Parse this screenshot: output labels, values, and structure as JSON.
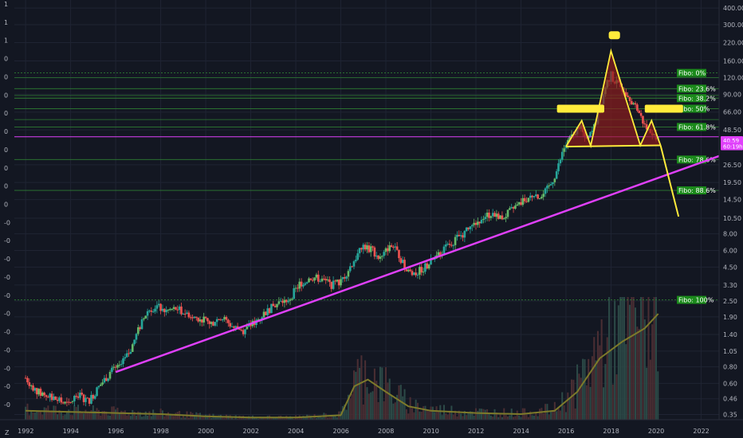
{
  "chart_data": {
    "type": "candlestick",
    "x_axis": {
      "ticks": [
        "1992",
        "1994",
        "1996",
        "1998",
        "2000",
        "2002",
        "2004",
        "2006",
        "2008",
        "2010",
        "2012",
        "2014",
        "2016",
        "2018",
        "2020",
        "2022"
      ],
      "range": [
        1991.5,
        2022.8
      ]
    },
    "y_axis": {
      "scale": "log",
      "ticks": [
        "400.00",
        "300.00",
        "220.00",
        "160.00",
        "120.00",
        "90.00",
        "66.00",
        "48.50",
        "26.50",
        "19.50",
        "14.50",
        "10.50",
        "8.00",
        "6.00",
        "4.50",
        "3.30",
        "2.50",
        "1.90",
        "1.40",
        "1.05",
        "0.80",
        "0.60",
        "0.46",
        "0.35"
      ],
      "range": [
        0.32,
        460
      ]
    },
    "left_axis_labels": [
      "1",
      "1",
      "1",
      "0",
      "0",
      "0",
      "0",
      "0",
      "0",
      "0",
      "0",
      "0",
      "-0",
      "-0",
      "-0",
      "-0",
      "-0",
      "-0",
      "-0",
      "-0",
      "-0",
      "-0",
      "-0"
    ],
    "current_price_tags": [
      {
        "label": "40.59",
        "value": 40.59,
        "color": "#e040fb"
      },
      {
        "label": "60:19h",
        "value": 36.5,
        "color": "#e040fb"
      }
    ],
    "fibonacci_levels": [
      {
        "label": "Fibo:  0%",
        "price": 130
      },
      {
        "label": "Fibo: 23.6%",
        "price": 99
      },
      {
        "label": "Fibo: 38.2%",
        "price": 84
      },
      {
        "label": "Fibo:  50%",
        "price": 70
      },
      {
        "label": "Fibo: 61.8%",
        "price": 51
      },
      {
        "label": "Fibo: 78.6%",
        "price": 29
      },
      {
        "label": "Fibo: 88.6%",
        "price": 17
      },
      {
        "label": "Fibo: 100%",
        "price": 2.55
      }
    ],
    "fib_extra_lines": [
      120,
      88,
      58
    ],
    "horizontal_line": {
      "price": 43,
      "color": "#e040fb"
    },
    "trendline": {
      "color": "#e040fb",
      "points": [
        {
          "x": 1996.0,
          "y": 0.73
        },
        {
          "x": 2022.8,
          "y": 30.8
        }
      ]
    },
    "annotation_head_and_shoulders": {
      "color": "#ffeb3b",
      "fill": "#8b1c1c",
      "neckline": [
        {
          "x": 2016.0,
          "y": 36.3
        },
        {
          "x": 2020.2,
          "y": 37.1
        }
      ],
      "outline": [
        {
          "x": 2016.0,
          "y": 36.3
        },
        {
          "x": 2016.7,
          "y": 57
        },
        {
          "x": 2017.1,
          "y": 36.8
        },
        {
          "x": 2018.0,
          "y": 190
        },
        {
          "x": 2019.3,
          "y": 37.1
        },
        {
          "x": 2019.8,
          "y": 57
        },
        {
          "x": 2020.2,
          "y": 37.1
        }
      ],
      "projection": [
        {
          "x": 2020.2,
          "y": 37.1
        },
        {
          "x": 2021.0,
          "y": 10.8
        }
      ],
      "shoulder_bars": [
        {
          "x0": 2015.6,
          "x1": 2017.7,
          "y": 70
        },
        {
          "x0": 2019.5,
          "x1": 2021.2,
          "y": 70
        }
      ],
      "head_bar": {
        "x0": 2017.9,
        "x1": 2018.4,
        "y": 250
      }
    },
    "price_path": [
      {
        "x": 1992.0,
        "y": 0.66
      },
      {
        "x": 1992.5,
        "y": 0.52
      },
      {
        "x": 1993.0,
        "y": 0.48
      },
      {
        "x": 1993.4,
        "y": 0.45
      },
      {
        "x": 1993.9,
        "y": 0.41
      },
      {
        "x": 1994.3,
        "y": 0.5
      },
      {
        "x": 1994.8,
        "y": 0.44
      },
      {
        "x": 1995.3,
        "y": 0.58
      },
      {
        "x": 1995.8,
        "y": 0.74
      },
      {
        "x": 1996.2,
        "y": 0.8
      },
      {
        "x": 1996.6,
        "y": 1.02
      },
      {
        "x": 1997.0,
        "y": 1.5
      },
      {
        "x": 1997.4,
        "y": 2.1
      },
      {
        "x": 1997.8,
        "y": 2.3
      },
      {
        "x": 1998.2,
        "y": 2.1
      },
      {
        "x": 1998.7,
        "y": 2.2
      },
      {
        "x": 1999.2,
        "y": 2.0
      },
      {
        "x": 1999.7,
        "y": 1.85
      },
      {
        "x": 2000.2,
        "y": 1.7
      },
      {
        "x": 2000.7,
        "y": 1.9
      },
      {
        "x": 2001.2,
        "y": 1.6
      },
      {
        "x": 2001.7,
        "y": 1.5
      },
      {
        "x": 2002.2,
        "y": 1.75
      },
      {
        "x": 2002.7,
        "y": 2.1
      },
      {
        "x": 2003.2,
        "y": 2.4
      },
      {
        "x": 2003.7,
        "y": 2.6
      },
      {
        "x": 2004.2,
        "y": 3.4
      },
      {
        "x": 2004.7,
        "y": 3.8
      },
      {
        "x": 2005.2,
        "y": 3.6
      },
      {
        "x": 2005.6,
        "y": 3.3
      },
      {
        "x": 2006.0,
        "y": 3.5
      },
      {
        "x": 2006.5,
        "y": 4.8
      },
      {
        "x": 2007.0,
        "y": 6.5
      },
      {
        "x": 2007.4,
        "y": 6.0
      },
      {
        "x": 2007.8,
        "y": 5.2
      },
      {
        "x": 2008.2,
        "y": 6.8
      },
      {
        "x": 2008.6,
        "y": 5.5
      },
      {
        "x": 2008.9,
        "y": 4.2
      },
      {
        "x": 2009.3,
        "y": 4.0
      },
      {
        "x": 2009.8,
        "y": 4.6
      },
      {
        "x": 2010.3,
        "y": 5.5
      },
      {
        "x": 2010.8,
        "y": 6.6
      },
      {
        "x": 2011.3,
        "y": 7.8
      },
      {
        "x": 2011.8,
        "y": 9.0
      },
      {
        "x": 2012.3,
        "y": 10.8
      },
      {
        "x": 2012.8,
        "y": 11.5
      },
      {
        "x": 2013.2,
        "y": 10.6
      },
      {
        "x": 2013.7,
        "y": 12.5
      },
      {
        "x": 2014.2,
        "y": 14.5
      },
      {
        "x": 2014.6,
        "y": 16.0
      },
      {
        "x": 2014.9,
        "y": 15.0
      },
      {
        "x": 2015.3,
        "y": 18.5
      },
      {
        "x": 2015.6,
        "y": 24.0
      },
      {
        "x": 2015.9,
        "y": 35.0
      },
      {
        "x": 2016.2,
        "y": 42.0
      },
      {
        "x": 2016.6,
        "y": 52.0
      },
      {
        "x": 2016.9,
        "y": 40.0
      },
      {
        "x": 2017.2,
        "y": 48.0
      },
      {
        "x": 2017.5,
        "y": 70.0
      },
      {
        "x": 2017.8,
        "y": 110.0
      },
      {
        "x": 2018.0,
        "y": 125.0
      },
      {
        "x": 2018.3,
        "y": 105.0
      },
      {
        "x": 2018.6,
        "y": 98.0
      },
      {
        "x": 2018.9,
        "y": 82.0
      },
      {
        "x": 2019.2,
        "y": 68.0
      },
      {
        "x": 2019.5,
        "y": 52.0
      },
      {
        "x": 2019.8,
        "y": 45.0
      },
      {
        "x": 2020.1,
        "y": 40.59
      }
    ],
    "volume_ma": [
      {
        "x": 1992.0,
        "y": 0.08
      },
      {
        "x": 1994.0,
        "y": 0.07
      },
      {
        "x": 1996.0,
        "y": 0.06
      },
      {
        "x": 1998.0,
        "y": 0.05
      },
      {
        "x": 2000.0,
        "y": 0.03
      },
      {
        "x": 2002.0,
        "y": 0.02
      },
      {
        "x": 2004.0,
        "y": 0.02
      },
      {
        "x": 2006.0,
        "y": 0.04
      },
      {
        "x": 2006.6,
        "y": 0.3
      },
      {
        "x": 2007.2,
        "y": 0.36
      },
      {
        "x": 2008.0,
        "y": 0.25
      },
      {
        "x": 2009.0,
        "y": 0.12
      },
      {
        "x": 2010.0,
        "y": 0.08
      },
      {
        "x": 2012.0,
        "y": 0.06
      },
      {
        "x": 2014.0,
        "y": 0.05
      },
      {
        "x": 2015.5,
        "y": 0.08
      },
      {
        "x": 2016.5,
        "y": 0.25
      },
      {
        "x": 2017.5,
        "y": 0.55
      },
      {
        "x": 2018.5,
        "y": 0.7
      },
      {
        "x": 2019.5,
        "y": 0.82
      },
      {
        "x": 2020.1,
        "y": 0.95
      }
    ]
  },
  "colors": {
    "background": "#131722",
    "grid": "#1f2433",
    "fib_line": "#2e7d32",
    "fib_label_bg": "#1b8a1b",
    "bull": "#26a69a",
    "bull_alt": "#66bb6a",
    "bear": "#ef5350",
    "volume": "#3a3f4b",
    "volume_ma": "#7d7a2a"
  },
  "footer": {
    "left_glyph": "Z"
  }
}
